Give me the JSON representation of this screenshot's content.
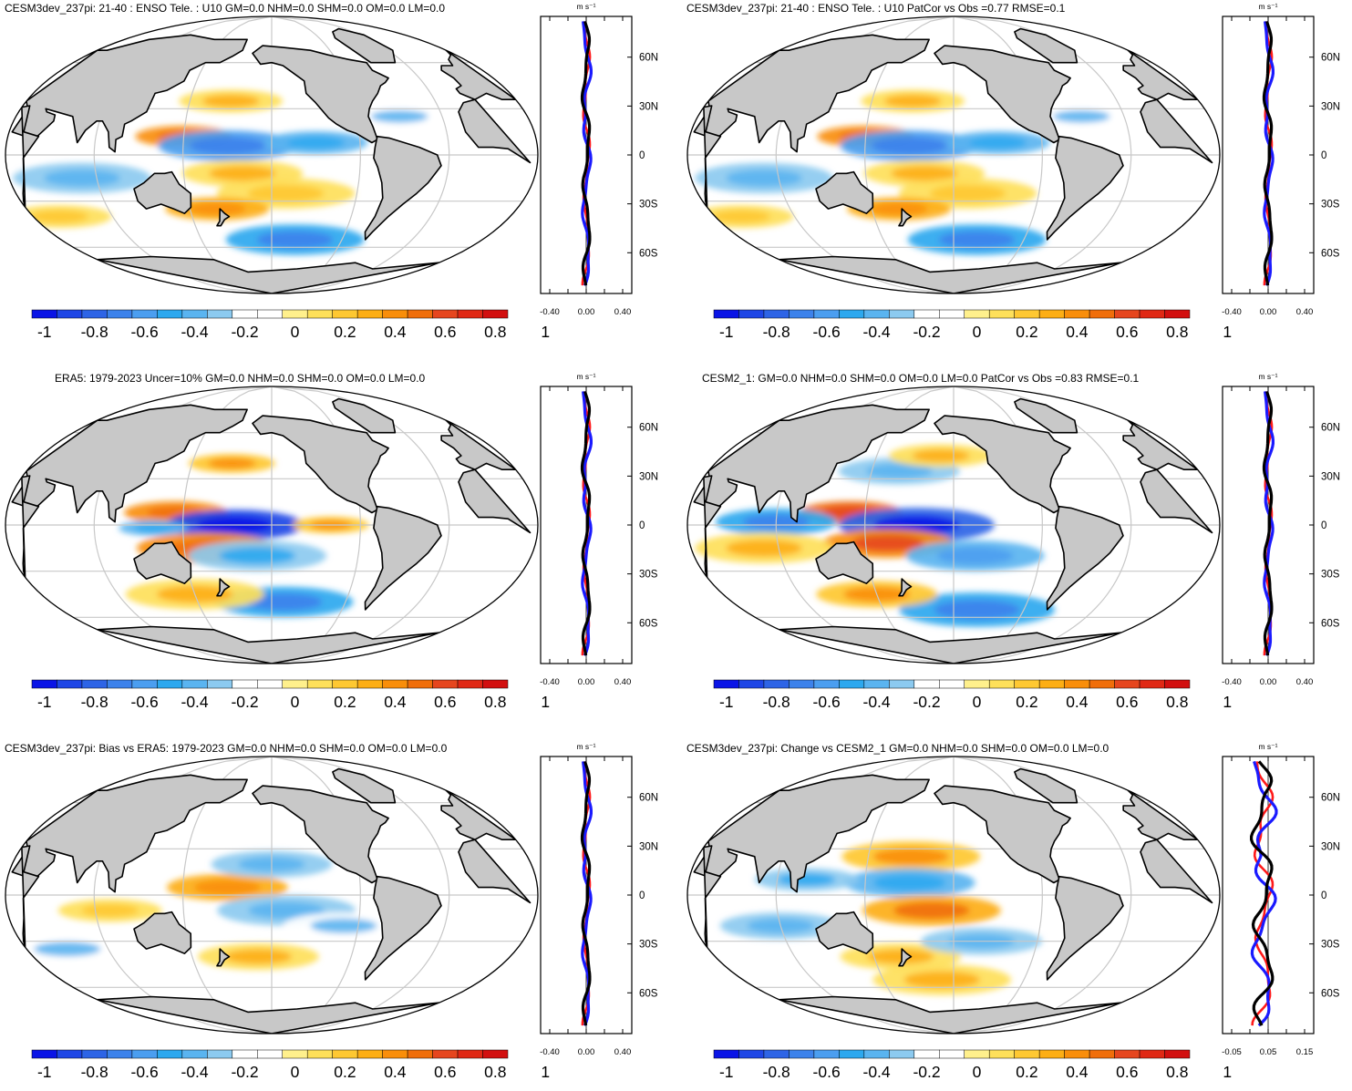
{
  "colors": {
    "ocean": "#ffffff",
    "land": "#c8c8c8",
    "coast": "#000000",
    "grid": "#c8c8c8",
    "profile_red": "#ff1a1a",
    "profile_blue": "#1a1aff",
    "profile_black": "#000000"
  },
  "colorbar": {
    "colors": [
      "#0a14e6",
      "#1e46e6",
      "#2d64e6",
      "#3c82eb",
      "#4b9ef0",
      "#2ca8ef",
      "#5ab4f0",
      "#8ccaf0",
      "#ffffff",
      "#ffffff",
      "#fff08c",
      "#fee05a",
      "#fec832",
      "#fdae14",
      "#f98e0a",
      "#f06e0a",
      "#e6461e",
      "#e02814",
      "#d20f0f"
    ],
    "labels": [
      "-1",
      "-0.8",
      "-0.6",
      "-0.4",
      "-0.2",
      "0",
      "0.2",
      "0.4",
      "0.6",
      "0.8",
      "1"
    ]
  },
  "lat_ticks": [
    "60N",
    "30N",
    "0",
    "30S",
    "60S"
  ],
  "units": "m s⁻¹",
  "panels": [
    {
      "title": "CESM3dev_237pi: 21-40 : ENSO Tele. : U10 GM=0.0 NHM=0.0 SHM=0.0 OM=0.0 LM=0.0",
      "profile_ticks": [
        "-0.40",
        "0.00",
        "0.40"
      ],
      "anomalies": [
        {
          "lon": 150,
          "lat": 12,
          "value": 0.45,
          "size": 28
        },
        {
          "lon": 180,
          "lat": 6,
          "value": -0.5,
          "size": 40
        },
        {
          "lon": 240,
          "lat": 8,
          "value": -0.3,
          "size": 30
        },
        {
          "lon": 190,
          "lat": -12,
          "value": 0.25,
          "size": 35
        },
        {
          "lon": 220,
          "lat": -25,
          "value": 0.15,
          "size": 40
        },
        {
          "lon": 230,
          "lat": -55,
          "value": -0.45,
          "size": 40
        },
        {
          "lon": 180,
          "lat": 35,
          "value": 0.2,
          "size": 30
        },
        {
          "lon": 80,
          "lat": -15,
          "value": -0.2,
          "size": 40
        },
        {
          "lon": 50,
          "lat": -40,
          "value": 0.15,
          "size": 30
        },
        {
          "lon": 170,
          "lat": -35,
          "value": 0.35,
          "size": 30
        },
        {
          "lon": 300,
          "lat": 25,
          "value": -0.15,
          "size": 30
        }
      ]
    },
    {
      "title": "CESM3dev_237pi: 21-40 : ENSO Tele. : U10 PatCor vs Obs =0.77 RMSE=0.1",
      "profile_ticks": [
        "-0.40",
        "0.00",
        "0.40"
      ],
      "anomalies": [
        {
          "lon": 150,
          "lat": 12,
          "value": 0.45,
          "size": 28
        },
        {
          "lon": 180,
          "lat": 6,
          "value": -0.5,
          "size": 40
        },
        {
          "lon": 240,
          "lat": 8,
          "value": -0.3,
          "size": 30
        },
        {
          "lon": 190,
          "lat": -12,
          "value": 0.25,
          "size": 35
        },
        {
          "lon": 220,
          "lat": -25,
          "value": 0.15,
          "size": 40
        },
        {
          "lon": 230,
          "lat": -55,
          "value": -0.45,
          "size": 40
        },
        {
          "lon": 180,
          "lat": 35,
          "value": 0.2,
          "size": 30
        },
        {
          "lon": 80,
          "lat": -15,
          "value": -0.2,
          "size": 40
        },
        {
          "lon": 50,
          "lat": -40,
          "value": 0.15,
          "size": 30
        },
        {
          "lon": 170,
          "lat": -35,
          "value": 0.35,
          "size": 30
        },
        {
          "lon": 300,
          "lat": 25,
          "value": -0.15,
          "size": 30
        }
      ]
    },
    {
      "title": "ERA5: 1979-2023 Uncer=10% GM=0.0 NHM=0.0 SHM=0.0 OM=0.0 LM=0.0",
      "profile_ticks": [
        "-0.40",
        "0.00",
        "0.40"
      ],
      "anomalies": [
        {
          "lon": 145,
          "lat": 8,
          "value": 0.45,
          "size": 30
        },
        {
          "lon": 185,
          "lat": 0,
          "value": -0.8,
          "size": 40
        },
        {
          "lon": 165,
          "lat": -15,
          "value": 0.45,
          "size": 40
        },
        {
          "lon": 200,
          "lat": -20,
          "value": -0.25,
          "size": 40
        },
        {
          "lon": 250,
          "lat": 0,
          "value": 0.3,
          "size": 22
        },
        {
          "lon": 220,
          "lat": -50,
          "value": -0.45,
          "size": 40
        },
        {
          "lon": 150,
          "lat": -45,
          "value": 0.2,
          "size": 40
        },
        {
          "lon": 180,
          "lat": 40,
          "value": 0.3,
          "size": 25
        },
        {
          "lon": 130,
          "lat": -2,
          "value": -0.3,
          "size": 20
        }
      ]
    },
    {
      "title": "CESM2_1: GM=0.0 NHM=0.0 SHM=0.0 OM=0.0 LM=0.0 PatCor vs Obs =0.83 RMSE=0.1",
      "profile_ticks": [
        "-0.40",
        "0.00",
        "0.40"
      ],
      "anomalies": [
        {
          "lon": 140,
          "lat": 8,
          "value": 0.6,
          "size": 30
        },
        {
          "lon": 185,
          "lat": 0,
          "value": -0.75,
          "size": 45
        },
        {
          "lon": 165,
          "lat": -12,
          "value": 0.5,
          "size": 38
        },
        {
          "lon": 90,
          "lat": 2,
          "value": -0.4,
          "size": 35
        },
        {
          "lon": 80,
          "lat": -15,
          "value": 0.25,
          "size": 40
        },
        {
          "lon": 225,
          "lat": -20,
          "value": -0.35,
          "size": 40
        },
        {
          "lon": 230,
          "lat": -55,
          "value": -0.45,
          "size": 45
        },
        {
          "lon": 150,
          "lat": -45,
          "value": 0.3,
          "size": 35
        },
        {
          "lon": 170,
          "lat": 35,
          "value": -0.2,
          "size": 35
        },
        {
          "lon": 200,
          "lat": 45,
          "value": 0.2,
          "size": 30
        }
      ]
    },
    {
      "title": "CESM3dev_237pi: Bias vs ERA5: 1979-2023 GM=0.0 NHM=0.0 SHM=0.0 OM=0.0 LM=0.0",
      "profile_ticks": [
        "-0.40",
        "0.00",
        "0.40"
      ],
      "anomalies": [
        {
          "lon": 180,
          "lat": 5,
          "value": 0.35,
          "size": 35
        },
        {
          "lon": 220,
          "lat": -10,
          "value": -0.2,
          "size": 40
        },
        {
          "lon": 210,
          "lat": 20,
          "value": -0.2,
          "size": 35
        },
        {
          "lon": 200,
          "lat": -40,
          "value": 0.25,
          "size": 35
        },
        {
          "lon": 100,
          "lat": -10,
          "value": 0.15,
          "size": 30
        },
        {
          "lon": 60,
          "lat": -35,
          "value": -0.15,
          "size": 35
        },
        {
          "lon": 260,
          "lat": -20,
          "value": -0.15,
          "size": 35
        }
      ]
    },
    {
      "title": "CESM3dev_237pi: Change vs CESM2_1 GM=0.0 NHM=0.0 SHM=0.0 OM=0.0 LM=0.0",
      "profile_ticks": [
        "-0.05",
        "0.05",
        "0.15"
      ],
      "anomalies": [
        {
          "lon": 180,
          "lat": 25,
          "value": 0.3,
          "size": 40
        },
        {
          "lon": 180,
          "lat": 8,
          "value": -0.3,
          "size": 38
        },
        {
          "lon": 195,
          "lat": -10,
          "value": 0.4,
          "size": 40
        },
        {
          "lon": 110,
          "lat": 10,
          "value": -0.25,
          "size": 30
        },
        {
          "lon": 170,
          "lat": -40,
          "value": 0.25,
          "size": 35
        },
        {
          "lon": 230,
          "lat": -30,
          "value": -0.2,
          "size": 35
        },
        {
          "lon": 90,
          "lat": -20,
          "value": -0.2,
          "size": 35
        },
        {
          "lon": 200,
          "lat": -55,
          "value": 0.2,
          "size": 40
        }
      ]
    }
  ]
}
